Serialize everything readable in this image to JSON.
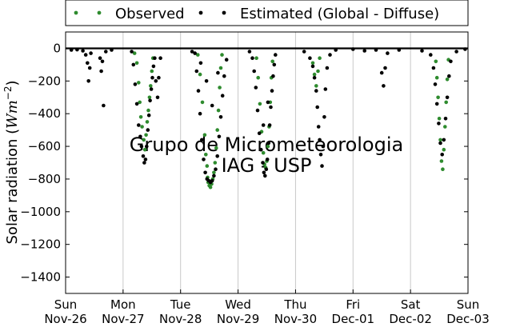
{
  "chart_data": {
    "type": "scatter",
    "xlabel": "",
    "ylabel": "Solar radiation (Wm⁻²)",
    "ylabel_main": "Solar radiation (",
    "ylabel_unit": "Wm",
    "ylabel_exp": "−2",
    "ylabel_close": ")",
    "xlim_days": [
      0,
      7
    ],
    "ylim": [
      -1500,
      100
    ],
    "yticks": [
      0,
      -200,
      -400,
      -600,
      -800,
      -1000,
      -1200,
      -1400
    ],
    "xticks": [
      {
        "day": 0,
        "line1": "Sun",
        "line2": "Nov-26"
      },
      {
        "day": 1,
        "line1": "Mon",
        "line2": "Nov-27"
      },
      {
        "day": 2,
        "line1": "Tue",
        "line2": "Nov-28"
      },
      {
        "day": 3,
        "line1": "Wed",
        "line2": "Nov-29"
      },
      {
        "day": 4,
        "line1": "Thu",
        "line2": "Nov-30"
      },
      {
        "day": 5,
        "line1": "Fri",
        "line2": "Dec-01"
      },
      {
        "day": 6,
        "line1": "Sat",
        "line2": "Dec-02"
      },
      {
        "day": 7,
        "line1": "Sun",
        "line2": "Dec-03"
      }
    ],
    "grid": "vertical",
    "legend_location": "top-center",
    "watermark": [
      "Grupo de Micrometeorologia",
      "IAG - USP"
    ],
    "series": [
      {
        "name": "Observed",
        "color": "#2e8b2e",
        "points": [
          [
            1.2,
            -30
          ],
          [
            1.24,
            -90
          ],
          [
            1.27,
            -210
          ],
          [
            1.29,
            -330
          ],
          [
            1.31,
            -420
          ],
          [
            1.33,
            -480
          ],
          [
            1.36,
            -560
          ],
          [
            1.38,
            -620
          ],
          [
            1.4,
            -530
          ],
          [
            1.42,
            -450
          ],
          [
            1.44,
            -380
          ],
          [
            1.46,
            -300
          ],
          [
            1.48,
            -230
          ],
          [
            1.5,
            -140
          ],
          [
            1.52,
            -60
          ],
          [
            2.3,
            -40
          ],
          [
            2.34,
            -160
          ],
          [
            2.38,
            -330
          ],
          [
            2.42,
            -530
          ],
          [
            2.44,
            -650
          ],
          [
            2.46,
            -720
          ],
          [
            2.47,
            -790
          ],
          [
            2.48,
            -820
          ],
          [
            2.5,
            -840
          ],
          [
            2.52,
            -850
          ],
          [
            2.54,
            -830
          ],
          [
            2.56,
            -800
          ],
          [
            2.58,
            -760
          ],
          [
            2.6,
            -700
          ],
          [
            2.62,
            -610
          ],
          [
            2.64,
            -500
          ],
          [
            2.66,
            -380
          ],
          [
            2.68,
            -240
          ],
          [
            2.7,
            -120
          ],
          [
            2.72,
            -40
          ],
          [
            3.32,
            -60
          ],
          [
            3.35,
            -180
          ],
          [
            3.38,
            -340
          ],
          [
            3.41,
            -510
          ],
          [
            3.44,
            -640
          ],
          [
            3.46,
            -710
          ],
          [
            3.48,
            -730
          ],
          [
            3.5,
            -690
          ],
          [
            3.52,
            -600
          ],
          [
            3.54,
            -480
          ],
          [
            3.56,
            -330
          ],
          [
            3.58,
            -180
          ],
          [
            3.6,
            -80
          ],
          [
            4.3,
            -90
          ],
          [
            4.33,
            -160
          ],
          [
            4.36,
            -230
          ],
          [
            4.39,
            -140
          ],
          [
            4.42,
            -60
          ],
          [
            6.44,
            -80
          ],
          [
            6.46,
            -180
          ],
          [
            6.48,
            -300
          ],
          [
            6.5,
            -430
          ],
          [
            6.52,
            -560
          ],
          [
            6.54,
            -690
          ],
          [
            6.56,
            -740
          ],
          [
            6.58,
            -620
          ],
          [
            6.6,
            -480
          ],
          [
            6.62,
            -330
          ],
          [
            6.64,
            -190
          ],
          [
            6.66,
            -70
          ]
        ]
      },
      {
        "name": "Estimated (Global - Diffuse)",
        "color": "#000000",
        "points": [
          [
            0.1,
            -10
          ],
          [
            0.2,
            -8
          ],
          [
            0.3,
            -15
          ],
          [
            0.35,
            -40
          ],
          [
            0.38,
            -90
          ],
          [
            0.4,
            -200
          ],
          [
            0.42,
            -120
          ],
          [
            0.44,
            -30
          ],
          [
            0.6,
            -60
          ],
          [
            0.62,
            -140
          ],
          [
            0.64,
            -80
          ],
          [
            0.66,
            -350
          ],
          [
            0.7,
            -20
          ],
          [
            0.8,
            -10
          ],
          [
            1.15,
            -20
          ],
          [
            1.18,
            -100
          ],
          [
            1.21,
            -220
          ],
          [
            1.24,
            -340
          ],
          [
            1.27,
            -470
          ],
          [
            1.3,
            -540
          ],
          [
            1.32,
            -600
          ],
          [
            1.35,
            -660
          ],
          [
            1.37,
            -700
          ],
          [
            1.39,
            -680
          ],
          [
            1.41,
            -600
          ],
          [
            1.43,
            -500
          ],
          [
            1.45,
            -410
          ],
          [
            1.47,
            -320
          ],
          [
            1.49,
            -250
          ],
          [
            1.51,
            -180
          ],
          [
            1.53,
            -110
          ],
          [
            1.55,
            -60
          ],
          [
            1.57,
            -200
          ],
          [
            1.6,
            -300
          ],
          [
            1.62,
            -180
          ],
          [
            1.65,
            -60
          ],
          [
            2.25,
            -30
          ],
          [
            2.28,
            -140
          ],
          [
            2.31,
            -260
          ],
          [
            2.34,
            -400
          ],
          [
            2.37,
            -560
          ],
          [
            2.4,
            -680
          ],
          [
            2.43,
            -760
          ],
          [
            2.46,
            -800
          ],
          [
            2.49,
            -810
          ],
          [
            2.52,
            -820
          ],
          [
            2.55,
            -810
          ],
          [
            2.58,
            -780
          ],
          [
            2.61,
            -740
          ],
          [
            2.64,
            -660
          ],
          [
            2.67,
            -540
          ],
          [
            2.7,
            -420
          ],
          [
            2.73,
            -290
          ],
          [
            2.76,
            -170
          ],
          [
            2.8,
            -70
          ],
          [
            2.45,
            -200
          ],
          [
            2.55,
            -350
          ],
          [
            2.65,
            -150
          ],
          [
            2.35,
            -90
          ],
          [
            2.2,
            -20
          ],
          [
            3.2,
            -20
          ],
          [
            3.25,
            -60
          ],
          [
            3.28,
            -140
          ],
          [
            3.31,
            -240
          ],
          [
            3.34,
            -380
          ],
          [
            3.37,
            -520
          ],
          [
            3.4,
            -620
          ],
          [
            3.43,
            -700
          ],
          [
            3.45,
            -760
          ],
          [
            3.47,
            -780
          ],
          [
            3.49,
            -740
          ],
          [
            3.51,
            -680
          ],
          [
            3.53,
            -580
          ],
          [
            3.55,
            -470
          ],
          [
            3.57,
            -360
          ],
          [
            3.59,
            -260
          ],
          [
            3.61,
            -170
          ],
          [
            3.63,
            -100
          ],
          [
            3.65,
            -40
          ],
          [
            3.44,
            -470
          ],
          [
            3.52,
            -330
          ],
          [
            4.15,
            -20
          ],
          [
            4.25,
            -60
          ],
          [
            4.3,
            -110
          ],
          [
            4.33,
            -180
          ],
          [
            4.36,
            -260
          ],
          [
            4.38,
            -360
          ],
          [
            4.4,
            -480
          ],
          [
            4.42,
            -560
          ],
          [
            4.44,
            -650
          ],
          [
            4.46,
            -720
          ],
          [
            4.48,
            -600
          ],
          [
            4.5,
            -420
          ],
          [
            4.52,
            -250
          ],
          [
            4.55,
            -120
          ],
          [
            4.6,
            -40
          ],
          [
            4.7,
            -10
          ],
          [
            5.0,
            -5
          ],
          [
            5.2,
            -15
          ],
          [
            5.4,
            -10
          ],
          [
            5.5,
            -150
          ],
          [
            5.53,
            -230
          ],
          [
            5.56,
            -120
          ],
          [
            5.6,
            -30
          ],
          [
            5.8,
            -10
          ],
          [
            6.2,
            -15
          ],
          [
            6.35,
            -40
          ],
          [
            6.4,
            -120
          ],
          [
            6.43,
            -220
          ],
          [
            6.46,
            -340
          ],
          [
            6.49,
            -460
          ],
          [
            6.52,
            -580
          ],
          [
            6.55,
            -650
          ],
          [
            6.58,
            -560
          ],
          [
            6.61,
            -430
          ],
          [
            6.64,
            -300
          ],
          [
            6.67,
            -170
          ],
          [
            6.7,
            -80
          ],
          [
            6.8,
            -20
          ],
          [
            6.95,
            -5
          ]
        ]
      }
    ]
  }
}
